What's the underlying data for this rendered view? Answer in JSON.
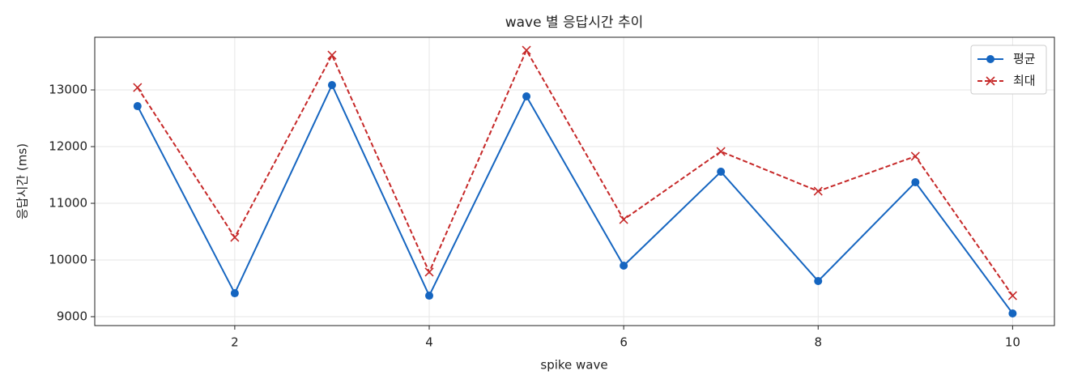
{
  "chart_data": {
    "type": "line",
    "title": "wave 별 응답시간 추이",
    "x_label": "spike wave",
    "y_label": "응답시간 (ms)",
    "x": [
      1,
      2,
      3,
      4,
      5,
      6,
      7,
      8,
      9,
      10
    ],
    "series": [
      {
        "name": "평균",
        "color": "#1565c0",
        "marker": "o",
        "linestyle": "solid",
        "values": [
          12714,
          9414,
          13086,
          9371,
          12886,
          9900,
          11557,
          9629,
          11371,
          9057
        ]
      },
      {
        "name": "최대",
        "color": "#c62828",
        "marker": "x",
        "linestyle": "dashed",
        "values": [
          13043,
          10400,
          13614,
          9786,
          13700,
          10714,
          11914,
          11214,
          11829,
          9371
        ]
      }
    ],
    "xlim": [
      0.56,
      10.43
    ],
    "xticks": [
      2,
      4,
      6,
      8,
      10
    ],
    "ylim": [
      8843,
      13929
    ],
    "yticks": [
      9000,
      10000,
      11000,
      12000,
      13000
    ],
    "grid": true,
    "legend": "upper right"
  }
}
